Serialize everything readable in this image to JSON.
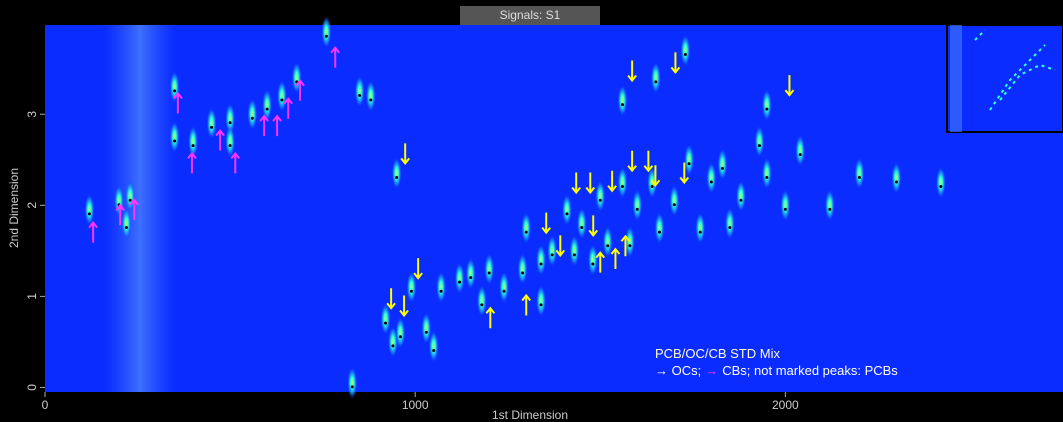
{
  "chart_data": {
    "type": "peaks",
    "title": "Signals: S1",
    "x_label": "1st Dimension",
    "y_label": "2nd Dimension",
    "xlim": [
      0,
      2750
    ],
    "ylim": [
      -0.05,
      3.98
    ],
    "xticks": [
      0,
      1000,
      2000
    ],
    "yticks": [
      0,
      1,
      2,
      3
    ],
    "background": "#0a2cff",
    "peak_color": "#40ffd0",
    "peaks": {
      "x": [
        120,
        200,
        230,
        220,
        350,
        350,
        400,
        450,
        500,
        500,
        560,
        600,
        640,
        680,
        760,
        850,
        880,
        950,
        940,
        920,
        960,
        990,
        1030,
        1050,
        1070,
        1120,
        1150,
        1180,
        1200,
        1240,
        1290,
        1300,
        1340,
        1340,
        1370,
        1410,
        1430,
        1450,
        1480,
        1500,
        1520,
        1560,
        1560,
        1580,
        1600,
        1640,
        1650,
        1660,
        1700,
        1740,
        1770,
        1800,
        1830,
        1850,
        1880,
        1930,
        1950,
        1950,
        2000,
        2040,
        2120,
        2200,
        2300,
        2420,
        1730,
        830
      ],
      "y": [
        1.95,
        2.05,
        2.1,
        1.8,
        3.3,
        2.75,
        2.7,
        2.9,
        2.95,
        2.7,
        3.0,
        3.1,
        3.2,
        3.4,
        3.9,
        3.25,
        3.2,
        2.35,
        0.5,
        0.75,
        0.6,
        1.1,
        0.65,
        0.45,
        1.1,
        1.2,
        1.25,
        0.95,
        1.3,
        1.1,
        1.3,
        1.75,
        1.4,
        0.95,
        1.5,
        1.95,
        1.5,
        1.8,
        1.4,
        2.1,
        1.6,
        3.15,
        2.25,
        1.6,
        2.0,
        2.25,
        3.4,
        1.75,
        2.05,
        2.5,
        1.75,
        2.3,
        2.45,
        1.8,
        2.1,
        2.7,
        2.35,
        3.1,
        2.0,
        2.6,
        2.0,
        2.35,
        2.3,
        2.25,
        3.7,
        0.05
      ]
    },
    "oc_arrows": {
      "color": "#ffff00",
      "x": [
        1586,
        1703,
        2011,
        973,
        935,
        970,
        1008,
        1435,
        1473,
        1532,
        1586,
        1630,
        1649,
        1727,
        1354,
        1392,
        1481,
        1500,
        1541,
        1568,
        1203,
        1300
      ],
      "y": [
        3.48,
        3.57,
        3.32,
        2.57,
        0.98,
        0.9,
        1.31,
        2.25,
        2.25,
        2.27,
        2.49,
        2.49,
        2.33,
        2.36,
        1.81,
        1.56,
        1.78,
        1.37,
        1.41,
        1.55,
        0.76,
        0.9
      ],
      "direction": [
        "down",
        "down",
        "down",
        "down",
        "down",
        "down",
        "down",
        "down",
        "down",
        "down",
        "down",
        "down",
        "down",
        "down",
        "down",
        "down",
        "down",
        "up",
        "up",
        "up",
        "up",
        "up"
      ]
    },
    "cb_arrows": {
      "color": "#ff33ff",
      "x": [
        130,
        203,
        241,
        359,
        397,
        473,
        514,
        592,
        627,
        657,
        689,
        784
      ],
      "y": [
        1.7,
        1.89,
        1.95,
        3.12,
        2.46,
        2.71,
        2.46,
        2.87,
        2.87,
        3.06,
        3.26,
        3.62
      ],
      "direction": [
        "up",
        "up",
        "up",
        "up",
        "up",
        "up",
        "up",
        "up",
        "up",
        "up",
        "up",
        "up"
      ]
    },
    "note_title": "PCB/OC/CB STD Mix",
    "note_line": [
      {
        "text": "→ OCs;",
        "color": "#ffffff"
      },
      {
        "text": "→",
        "color": "#ff33ff"
      },
      {
        "text": "CBs; not marked peaks: PCBs",
        "color": "#ffffff"
      }
    ]
  }
}
